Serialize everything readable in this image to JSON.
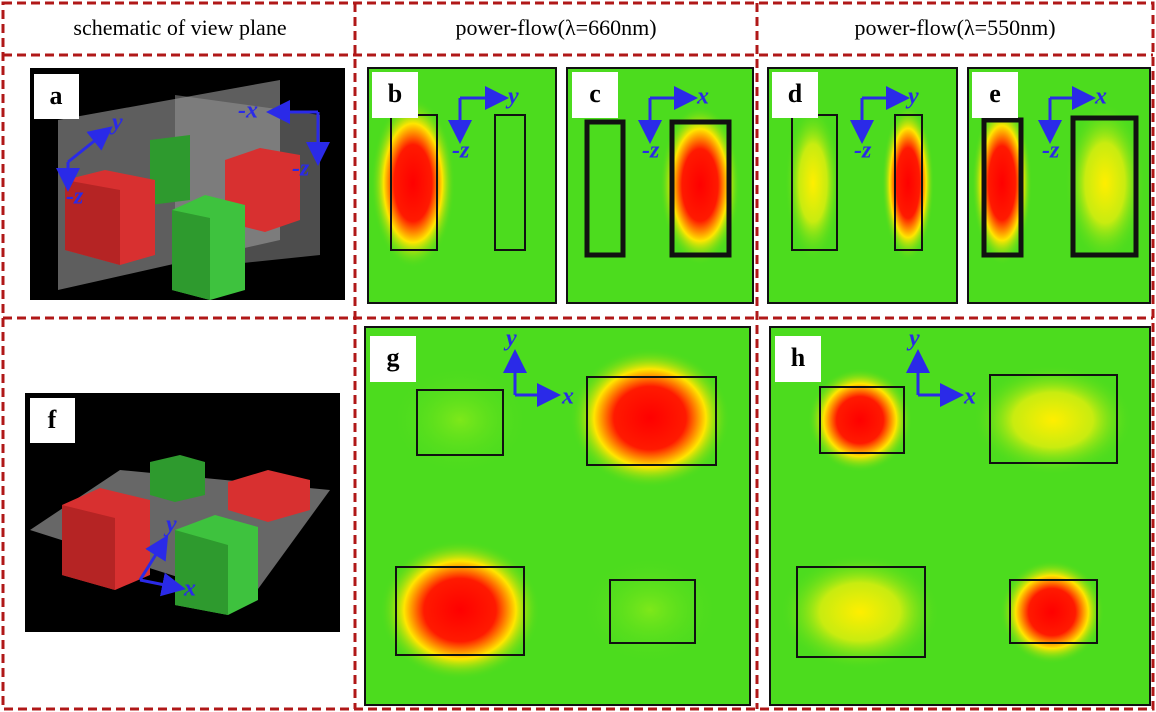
{
  "header": {
    "schematic": "schematic of view plane",
    "col660": "power-flow(λ=660nm)",
    "col550": "power-flow(λ=550nm)"
  },
  "panels": [
    {
      "label": "a",
      "axes": [
        "y",
        "-z",
        "-x",
        "-z"
      ]
    },
    {
      "label": "b",
      "axes": [
        "y",
        "-z"
      ]
    },
    {
      "label": "c",
      "axes": [
        "x",
        "-z"
      ]
    },
    {
      "label": "d",
      "axes": [
        "y",
        "-z"
      ]
    },
    {
      "label": "e",
      "axes": [
        "x",
        "-z"
      ]
    },
    {
      "label": "f",
      "axes": [
        "y",
        "x"
      ]
    },
    {
      "label": "g",
      "axes": [
        "y",
        "x"
      ]
    },
    {
      "label": "h",
      "axes": [
        "y",
        "x"
      ]
    }
  ]
}
